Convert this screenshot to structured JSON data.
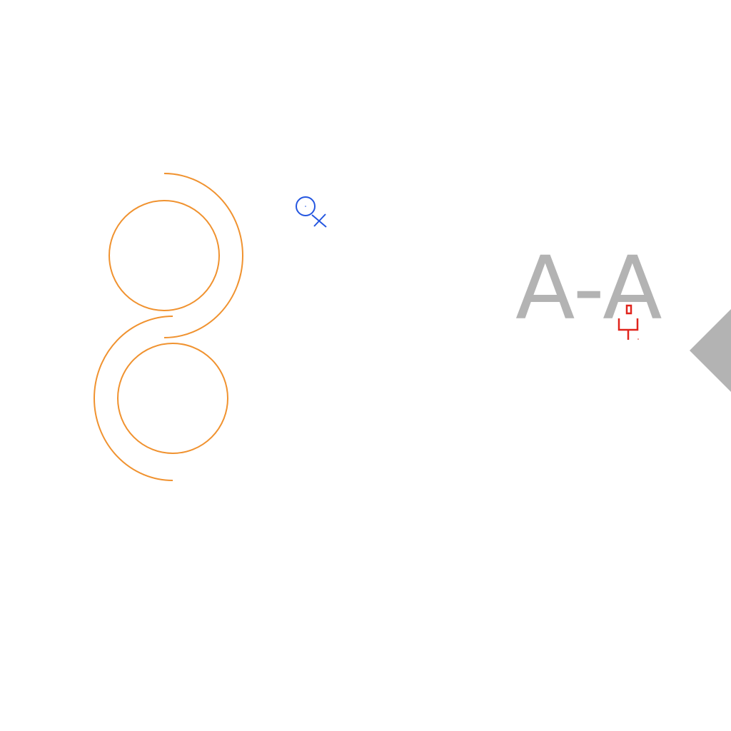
{
  "drawing": {
    "section_label": "A-A",
    "colors": {
      "geometry": "#f0922f",
      "section": "#b3b3b3",
      "symbol_blue": "#2456e0",
      "symbol_red": "#e0241c",
      "background": "#ffffff"
    },
    "icons": {
      "blue_symbol": "magnifier-cross-icon",
      "red_symbol": "fork-marker-icon",
      "section_arrow": "triangle-arrow-icon"
    }
  }
}
